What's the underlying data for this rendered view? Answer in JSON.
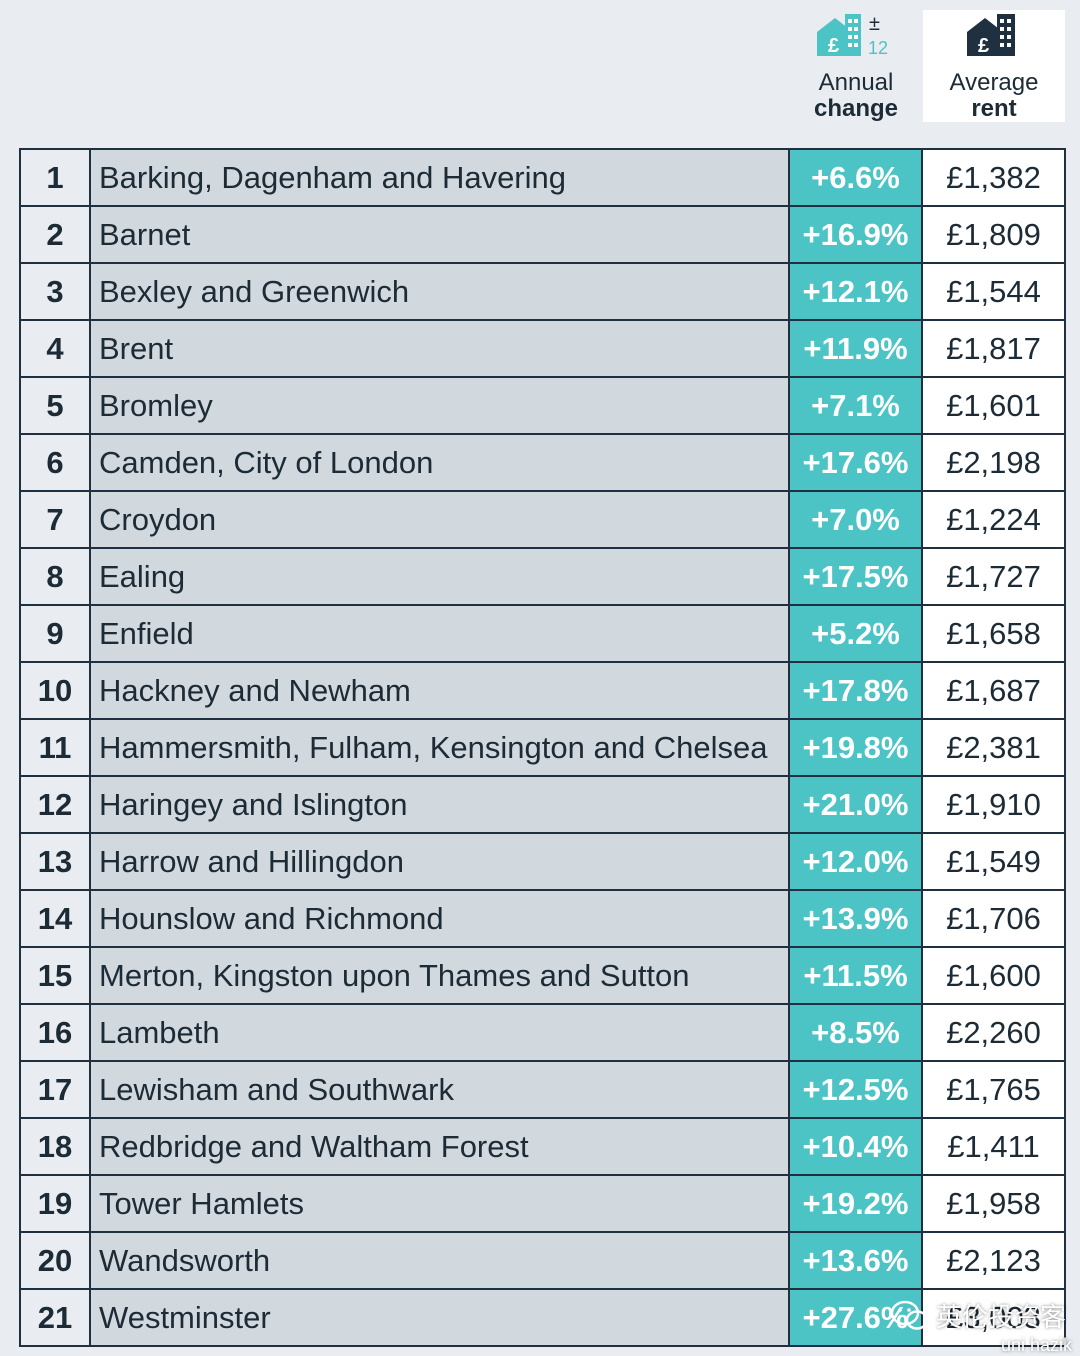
{
  "header": {
    "change": {
      "line1": "Annual",
      "line2": "change",
      "icon": "house-pound-plus-minus-12-icon",
      "icon_sign": "±",
      "icon_months": "12",
      "icon_currency": "£"
    },
    "rent": {
      "line1": "Average",
      "line2": "rent",
      "icon": "house-pound-icon",
      "icon_currency": "£"
    }
  },
  "colors": {
    "teal": "#4cc3c5",
    "navy": "#1f3140",
    "name_bg": "#d1d8de",
    "page_bg": "#e9edf1"
  },
  "rows": [
    {
      "rank": "1",
      "area": "Barking, Dagenham and Havering",
      "change": "+6.6%",
      "rent": "£1,382"
    },
    {
      "rank": "2",
      "area": "Barnet",
      "change": "+16.9%",
      "rent": "£1,809"
    },
    {
      "rank": "3",
      "area": "Bexley and Greenwich",
      "change": "+12.1%",
      "rent": "£1,544"
    },
    {
      "rank": "4",
      "area": "Brent",
      "change": "+11.9%",
      "rent": "£1,817"
    },
    {
      "rank": "5",
      "area": "Bromley",
      "change": "+7.1%",
      "rent": "£1,601"
    },
    {
      "rank": "6",
      "area": "Camden, City of London",
      "change": "+17.6%",
      "rent": "£2,198"
    },
    {
      "rank": "7",
      "area": "Croydon",
      "change": "+7.0%",
      "rent": "£1,224"
    },
    {
      "rank": "8",
      "area": "Ealing",
      "change": "+17.5%",
      "rent": "£1,727"
    },
    {
      "rank": "9",
      "area": "Enfield",
      "change": "+5.2%",
      "rent": "£1,658"
    },
    {
      "rank": "10",
      "area": "Hackney and Newham",
      "change": "+17.8%",
      "rent": "£1,687"
    },
    {
      "rank": "11",
      "area": "Hammersmith, Fulham, Kensington and Chelsea",
      "change": "+19.8%",
      "rent": "£2,381"
    },
    {
      "rank": "12",
      "area": "Haringey and Islington",
      "change": "+21.0%",
      "rent": "£1,910"
    },
    {
      "rank": "13",
      "area": "Harrow and Hillingdon",
      "change": "+12.0%",
      "rent": "£1,549"
    },
    {
      "rank": "14",
      "area": "Hounslow and Richmond",
      "change": "+13.9%",
      "rent": "£1,706"
    },
    {
      "rank": "15",
      "area": "Merton, Kingston upon Thames and Sutton",
      "change": "+11.5%",
      "rent": "£1,600"
    },
    {
      "rank": "16",
      "area": "Lambeth",
      "change": "+8.5%",
      "rent": "£2,260"
    },
    {
      "rank": "17",
      "area": "Lewisham and Southwark",
      "change": "+12.5%",
      "rent": "£1,765"
    },
    {
      "rank": "18",
      "area": "Redbridge and Waltham Forest",
      "change": "+10.4%",
      "rent": "£1,411"
    },
    {
      "rank": "19",
      "area": "Tower Hamlets",
      "change": "+19.2%",
      "rent": "£1,958"
    },
    {
      "rank": "20",
      "area": "Wandsworth",
      "change": "+13.6%",
      "rent": "£2,123"
    },
    {
      "rank": "21",
      "area": "Westminster",
      "change": "+27.6%",
      "rent": "£3,003"
    }
  ],
  "watermark": {
    "text": "英伦投资客",
    "sub": "uni hazik",
    "icon": "wechat-icon"
  }
}
